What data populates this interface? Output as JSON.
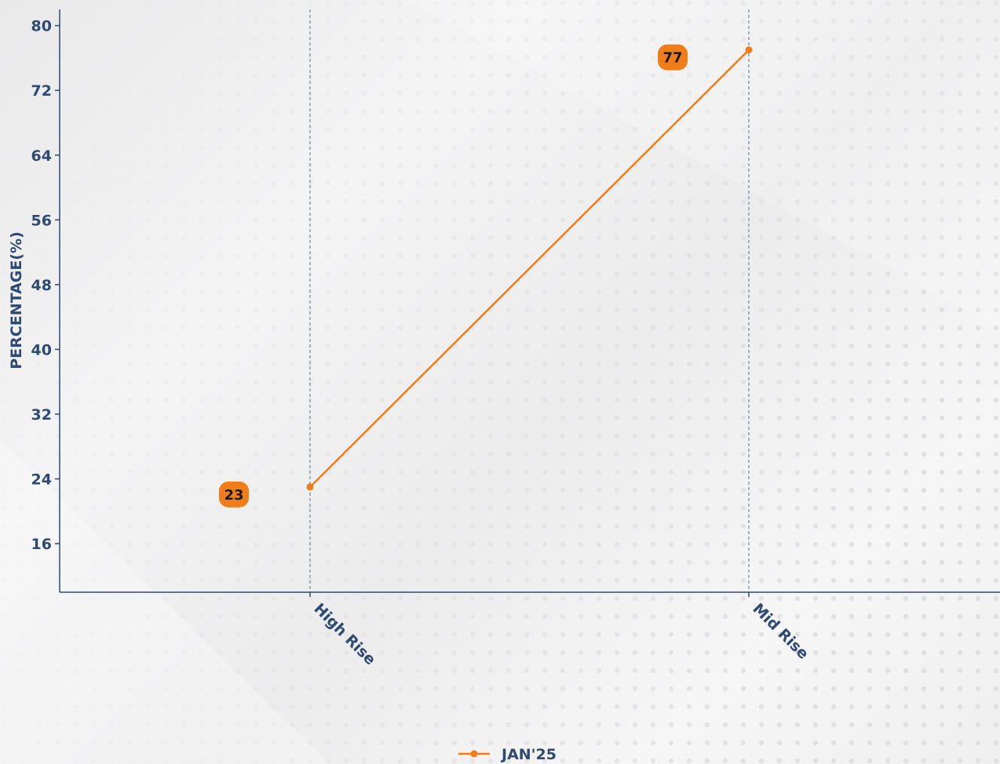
{
  "chart_data": {
    "type": "line",
    "categories": [
      "High Rise",
      "Mid Rise"
    ],
    "series": [
      {
        "name": "JAN'25",
        "values": [
          23,
          77
        ],
        "color": "#f07d1a"
      }
    ],
    "title": "",
    "xlabel": "",
    "ylabel": "PERCENTAGE(%)",
    "ylim": [
      10,
      82
    ],
    "yticks": [
      16,
      24,
      32,
      40,
      48,
      56,
      64,
      72,
      80
    ],
    "grid": "vertical dashed lines at categories",
    "legend_position": "bottom-center",
    "axis_color": "#2e4a72"
  }
}
